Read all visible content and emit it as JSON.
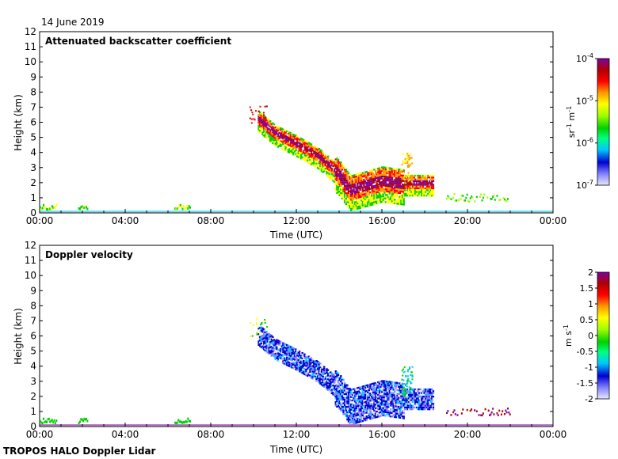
{
  "date_label": "14 June 2019",
  "footer": "TROPOS HALO Doppler Lidar",
  "chart_data": [
    {
      "type": "heatmap",
      "title": "Attenuated backscatter coefficient",
      "xlabel": "Time (UTC)",
      "ylabel": "Height (km)",
      "x_ticks": [
        "00:00",
        "04:00",
        "08:00",
        "12:00",
        "16:00",
        "20:00",
        "00:00"
      ],
      "xlim_hours": [
        0,
        24
      ],
      "y_ticks": [
        0,
        1,
        2,
        3,
        4,
        5,
        6,
        7,
        8,
        9,
        10,
        11,
        12
      ],
      "ylim_km": [
        0,
        12
      ],
      "colorbar": {
        "scale": "log",
        "range": [
          1e-07,
          0.0001
        ],
        "tick_labels": [
          "10-7",
          "10-6",
          "10-5",
          "10-4"
        ],
        "unit": "sr-1 m-1",
        "colormap": [
          "#e8e8ff",
          "#8080ff",
          "#0000d0",
          "#00c8ff",
          "#00ff80",
          "#00d000",
          "#a0ff00",
          "#ffff00",
          "#ff9900",
          "#ff0000",
          "#b00000",
          "#8000a0"
        ]
      },
      "features": [
        {
          "name": "descending layer",
          "points": [
            [
              10.0,
              6.5
            ],
            [
              11.0,
              5.3
            ],
            [
              12.0,
              4.6
            ],
            [
              13.0,
              3.8
            ],
            [
              14.0,
              2.6
            ],
            [
              14.5,
              1.6
            ],
            [
              15.0,
              1.8
            ],
            [
              16.0,
              2.2
            ],
            [
              17.0,
              2.0
            ],
            [
              18.5,
              2.0
            ]
          ]
        },
        {
          "name": "aerosol near surface",
          "time_range": [
            0,
            24
          ],
          "height_km": [
            0,
            0.5
          ]
        },
        {
          "name": "residual layer",
          "time_range": [
            19,
            22
          ],
          "height_km": [
            0.7,
            1.2
          ]
        }
      ]
    },
    {
      "type": "heatmap",
      "title": "Doppler velocity",
      "xlabel": "Time (UTC)",
      "ylabel": "Height (km)",
      "x_ticks": [
        "00:00",
        "04:00",
        "08:00",
        "12:00",
        "16:00",
        "20:00",
        "00:00"
      ],
      "xlim_hours": [
        0,
        24
      ],
      "y_ticks": [
        0,
        1,
        2,
        3,
        4,
        5,
        6,
        7,
        8,
        9,
        10,
        11,
        12
      ],
      "ylim_km": [
        0,
        12
      ],
      "colorbar": {
        "scale": "linear",
        "range": [
          -2,
          2
        ],
        "tick_labels": [
          "2",
          "1.5",
          "1",
          "0.5",
          "0",
          "-0.5",
          "-1",
          "-1.5",
          "-2"
        ],
        "unit": "m s-1",
        "colormap": [
          "#e8e8ff",
          "#8080ff",
          "#0000d0",
          "#00c8ff",
          "#00ff80",
          "#00d000",
          "#a0ff00",
          "#ffff00",
          "#ff9900",
          "#ff0000",
          "#b00000",
          "#8000a0"
        ]
      },
      "features": [
        {
          "name": "downdraft layer",
          "time_range": [
            10.5,
            17.0
          ],
          "velocity_ms": -1.5
        },
        {
          "name": "upper returns",
          "time_range": [
            17.0,
            18.5
          ],
          "velocity_ms": 0.0
        },
        {
          "name": "low-level positive velocity",
          "time_range": [
            19.0,
            22.0
          ],
          "velocity_ms": 2.0
        }
      ]
    }
  ]
}
